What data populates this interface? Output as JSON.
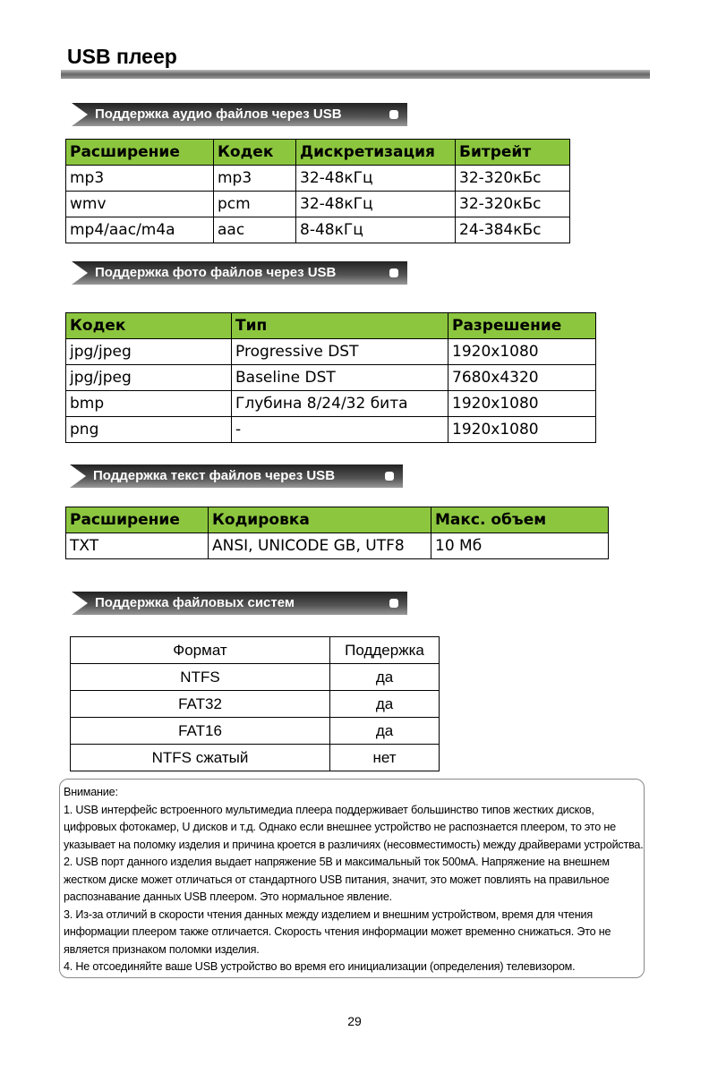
{
  "title": "USB плеер",
  "audio": {
    "banner": "Поддержка аудио файлов через USB",
    "headers": [
      "Расширение",
      "Кодек",
      "Дискретизация",
      "Битрейт"
    ],
    "rows": [
      [
        "mp3",
        "mp3",
        "32-48кГц",
        "32-320кБс"
      ],
      [
        "wmv",
        "pcm",
        "32-48кГц",
        "32-320кБс"
      ],
      [
        "mp4/aac/m4a",
        "aac",
        "8-48кГц",
        "24-384кБс"
      ]
    ]
  },
  "photo": {
    "banner": "Поддержка фото файлов через USB",
    "headers": [
      "Кодек",
      "Тип",
      "Разрешение"
    ],
    "rows": [
      [
        "jpg/jpeg",
        "Progressive DST",
        "1920x1080"
      ],
      [
        "jpg/jpeg",
        "Baseline DST",
        "7680x4320"
      ],
      [
        "bmp",
        "Глубина 8/24/32 бита",
        "1920x1080"
      ],
      [
        "png",
        "-",
        "1920x1080"
      ]
    ]
  },
  "text": {
    "banner": "Поддержка текст файлов через USB",
    "headers": [
      "Расширение",
      "Кодировка",
      "Макс. объем"
    ],
    "rows": [
      [
        "TXT",
        "ANSI, UNICODE GB, UTF8",
        "10 Мб"
      ]
    ]
  },
  "fs": {
    "banner": "Поддержка файловых систем",
    "headers": [
      "Формат",
      "Поддержка"
    ],
    "rows": [
      [
        "NTFS",
        "да"
      ],
      [
        "FAT32",
        "да"
      ],
      [
        "FAT16",
        "да"
      ],
      [
        "NTFS сжатый",
        "нет"
      ]
    ]
  },
  "note": {
    "lines": [
      "Внимание:",
      "1. USB интерфейс встроенного мультимедиа плеера поддерживает большинство типов жестких дисков,",
      "цифровых фотокамер, U дисков и т.д. Однако если внешнее устройство не распознается плеером, то это не",
      "указывает на поломку изделия и причина кроется в различиях (несовместимость) между драйверами устройства.",
      "2. USB порт данного изделия выдает напряжение 5В и максимальный ток 500мА. Напряжение на внешнем",
      "жестком диске может отличаться от стандартного USB питания, значит, это может повлиять на правильное",
      "распознавание данных USB плеером. Это нормальное явление.",
      "3. Из-за отличий в скорости чтения данных между изделием и внешним устройством, время для чтения",
      "информации плеером также отличается. Скорость чтения информации может временно снижаться. Это не",
      "является признаком поломки изделия.",
      "4. Не отсоединяйте ваше USB устройство во время его инициализации (определения) телевизором."
    ]
  },
  "page_number": "29"
}
